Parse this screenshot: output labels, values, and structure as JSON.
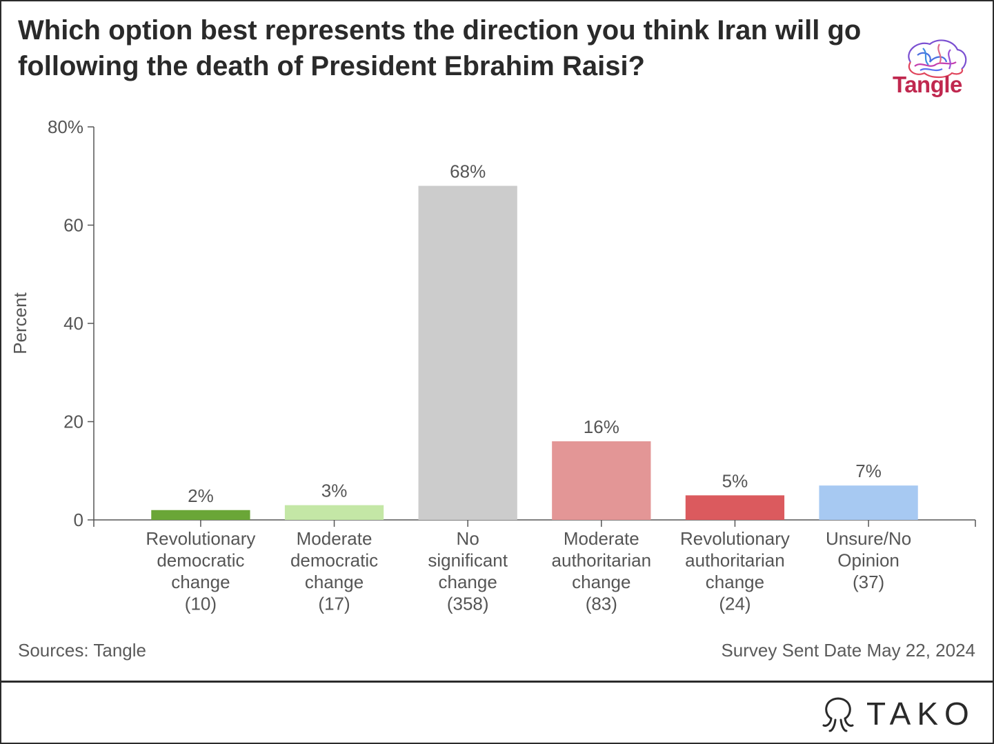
{
  "header": {
    "title": "Which option best represents the direction you think Iran will go following the death of President Ebrahim Raisi?",
    "logo_text": "Tangle"
  },
  "chart_data": {
    "type": "bar",
    "title": "Which option best represents the direction you think Iran will go following the death of President Ebrahim Raisi?",
    "ylabel": "Percent",
    "xlabel": "",
    "ylim": [
      0,
      80
    ],
    "yticks": [
      "0",
      "20",
      "40",
      "60",
      "80%"
    ],
    "ytick_values": [
      0,
      20,
      40,
      60,
      80
    ],
    "grid": false,
    "categories": [
      [
        "Revolutionary",
        "democratic",
        "change",
        "(10)"
      ],
      [
        "Moderate",
        "democratic",
        "change",
        "(17)"
      ],
      [
        "No",
        "significant",
        "change",
        "(358)"
      ],
      [
        "Moderate",
        "authoritarian",
        "change",
        "(83)"
      ],
      [
        "Revolutionary",
        "authoritarian",
        "change",
        "(24)"
      ],
      [
        "Unsure/No",
        "Opinion",
        "(37)"
      ]
    ],
    "values": [
      2,
      3,
      68,
      16,
      5,
      7
    ],
    "data_labels": [
      "2%",
      "3%",
      "68%",
      "16%",
      "5%",
      "7%"
    ],
    "colors": [
      "#6aa637",
      "#c4e7a6",
      "#cccccc",
      "#e39696",
      "#db5a5e",
      "#a7c9f2"
    ]
  },
  "footer": {
    "sources": "Sources: Tangle",
    "survey_date": "Survey Sent Date May 22, 2024",
    "brand": "TAKO"
  }
}
